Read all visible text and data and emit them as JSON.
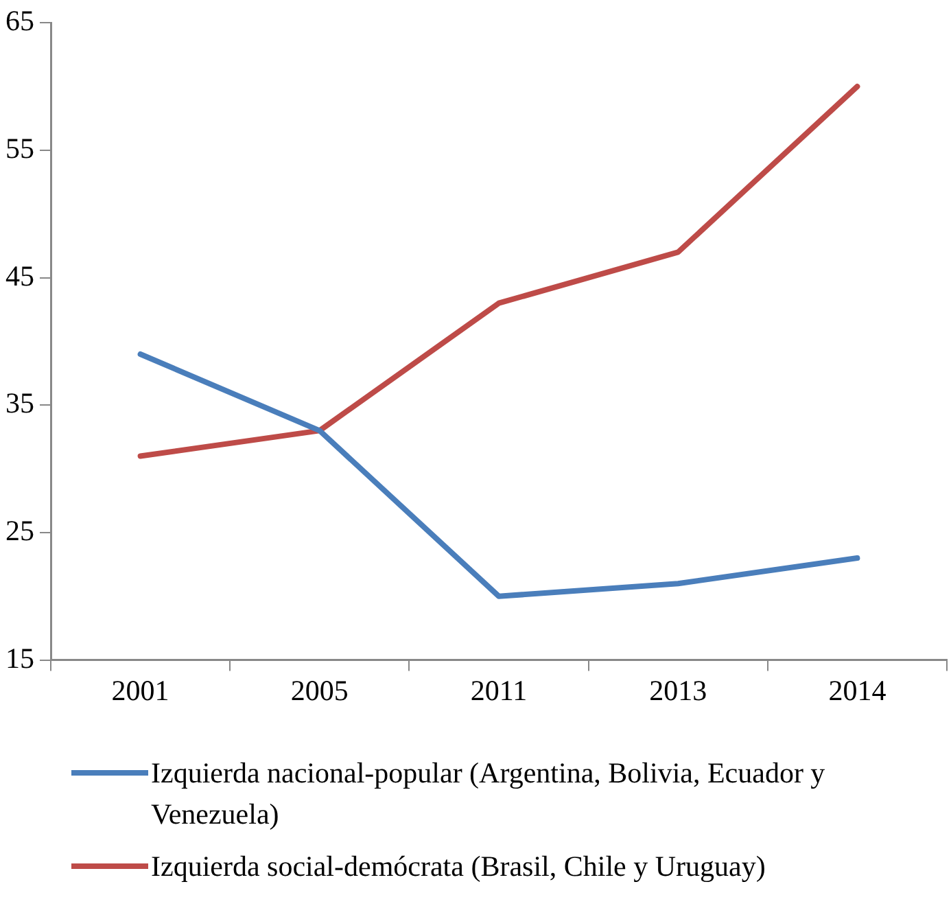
{
  "chart_data": {
    "type": "line",
    "categories": [
      "2001",
      "2005",
      "2011",
      "2013",
      "2014"
    ],
    "series": [
      {
        "name": "Izquierda nacional-popular (Argentina, Bolivia, Ecuador y Venezuela)",
        "color": "#4a7ebb",
        "values": [
          39,
          33,
          20,
          21,
          23
        ]
      },
      {
        "name": "Izquierda social-demócrata (Brasil, Chile y Uruguay)",
        "color": "#be4b48",
        "values": [
          31,
          33,
          43,
          47,
          60
        ]
      }
    ],
    "ylim": [
      15,
      65
    ],
    "yticks": [
      15,
      25,
      35,
      45,
      55,
      65
    ],
    "grid": false,
    "legend": "bottom",
    "marker": "none",
    "line_style": "solid"
  }
}
